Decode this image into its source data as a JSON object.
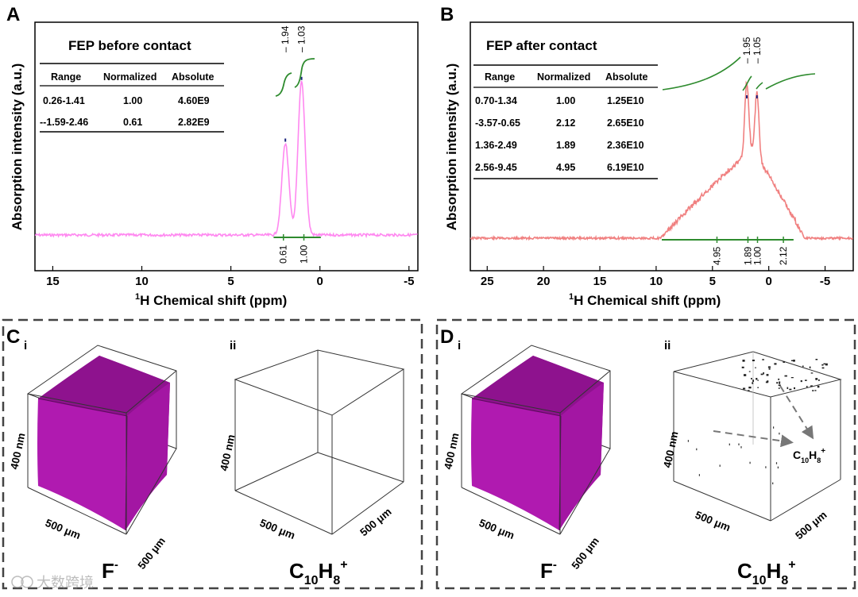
{
  "chart_data": [
    {
      "type": "line",
      "panel": "A",
      "title": "FEP before contact",
      "xlabel_sup": "1",
      "xlabel": "H Chemical shift (ppm)",
      "ylabel": "Absorption intensity (a.u.)",
      "xlim": [
        16,
        -5.5
      ],
      "xticks": [
        15,
        10,
        5,
        0,
        -5
      ],
      "xtick_labels": [
        "15",
        "10",
        "5",
        "0",
        "-5"
      ],
      "peaks": [
        {
          "ppm": 1.94,
          "height": 0.55,
          "label": "1.94"
        },
        {
          "ppm": 1.03,
          "height": 0.92,
          "label": "1.03"
        }
      ],
      "integrals": [
        {
          "x": 2.05,
          "label": "0.61"
        },
        {
          "x": 0.9,
          "label": "1.00"
        }
      ],
      "integral_range": [
        2.6,
        -0.05
      ],
      "table": {
        "headers": [
          "Range",
          "Normalized",
          "Absolute"
        ],
        "rows": [
          [
            "0.26-1.41",
            "1.00",
            "4.60E9"
          ],
          [
            "--1.59-2.46",
            "0.61",
            "2.82E9"
          ]
        ]
      },
      "colors": {
        "spectrum": "#ff88f0",
        "integral": "#2e8b2e",
        "peak_label": "#1a237e"
      }
    },
    {
      "type": "line",
      "panel": "B",
      "title": "FEP after contact",
      "xlabel_sup": "1",
      "xlabel": "H Chemical shift (ppm)",
      "ylabel": "Absorption intensity (a.u.)",
      "xlim": [
        26.5,
        -7.5
      ],
      "xticks": [
        25,
        20,
        15,
        10,
        5,
        0,
        -5
      ],
      "xtick_labels": [
        "25",
        "20",
        "15",
        "10",
        "5",
        "0",
        "-5"
      ],
      "peaks": [
        {
          "ppm": 1.95,
          "height": 0.9,
          "label": "1.95"
        },
        {
          "ppm": 1.05,
          "height": 0.85,
          "label": "1.05"
        }
      ],
      "integrals": [
        {
          "x": 4.6,
          "label": "4.95"
        },
        {
          "x": 1.85,
          "label": "1.89"
        },
        {
          "x": 1.0,
          "label": "1.00"
        },
        {
          "x": -1.3,
          "label": "2.12"
        }
      ],
      "integral_range": [
        9.5,
        -2.2
      ],
      "table": {
        "headers": [
          "Range",
          "Normalized",
          "Absolute"
        ],
        "rows": [
          [
            "0.70-1.34",
            "1.00",
            "1.25E10"
          ],
          [
            "-3.57-0.65",
            "2.12",
            "2.65E10"
          ],
          [
            "1.36-2.49",
            "1.89",
            "2.36E10"
          ],
          [
            "2.56-9.45",
            "4.95",
            "6.19E10"
          ]
        ]
      },
      "colors": {
        "spectrum": "#f08080",
        "integral": "#2e8b2e",
        "peak_label": "#1a237e"
      }
    }
  ],
  "panels": {
    "A": {
      "letter": "A"
    },
    "B": {
      "letter": "B"
    },
    "C": {
      "letter": "C",
      "sub_i": "i",
      "sub_ii": "ii",
      "axis_z": "400 nm",
      "axis_x": "500 μm",
      "axis_y": "500 μm",
      "label_i": "F",
      "label_i_sup": "-",
      "label_ii_base": "C",
      "label_ii_sub1": "10",
      "label_ii_mid": "H",
      "label_ii_sub2": "8",
      "label_ii_sup": "+"
    },
    "D": {
      "letter": "D",
      "sub_i": "i",
      "sub_ii": "ii",
      "axis_z": "400 nm",
      "axis_x": "500 μm",
      "axis_y": "500 μm",
      "label_i": "F",
      "label_i_sup": "-",
      "label_ii_base": "C",
      "label_ii_sub1": "10",
      "label_ii_mid": "H",
      "label_ii_sub2": "8",
      "label_ii_sup": "+",
      "annotation_base": "C",
      "annotation_sub1": "10",
      "annotation_mid": "H",
      "annotation_sub2": "8",
      "annotation_sup": "+"
    }
  },
  "watermark": "大数跨境",
  "colors": {
    "cube": "#b01ab0",
    "cube_top": "#8e128e",
    "frame": "#444444"
  }
}
